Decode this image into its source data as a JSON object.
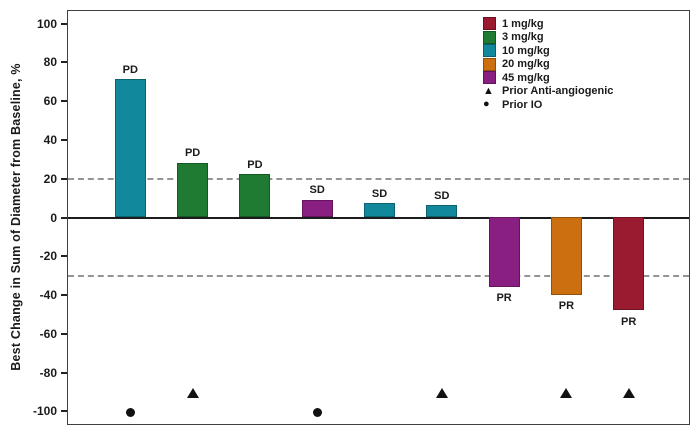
{
  "chart_data": {
    "type": "bar",
    "title": "",
    "xlabel": "",
    "ylabel": "Best Change in Sum of Diameter from Baseline, %",
    "ylim": [
      -107,
      107
    ],
    "yticks": [
      100,
      80,
      60,
      40,
      20,
      0,
      -20,
      -40,
      -60,
      -80,
      -100
    ],
    "reference_lines": [
      20,
      -30
    ],
    "grid": false,
    "legend_position": "top-right",
    "bars": [
      {
        "value": 71,
        "response": "PD",
        "dose": "10 mg/kg",
        "prior_io": true,
        "prior_antiangiogenic": false
      },
      {
        "value": 28,
        "response": "PD",
        "dose": "3 mg/kg",
        "prior_io": false,
        "prior_antiangiogenic": true
      },
      {
        "value": 22,
        "response": "PD",
        "dose": "3 mg/kg",
        "prior_io": false,
        "prior_antiangiogenic": false
      },
      {
        "value": 9,
        "response": "SD",
        "dose": "45 mg/kg",
        "prior_io": true,
        "prior_antiangiogenic": false
      },
      {
        "value": 7,
        "response": "SD",
        "dose": "10 mg/kg",
        "prior_io": false,
        "prior_antiangiogenic": false
      },
      {
        "value": 6,
        "response": "SD",
        "dose": "10 mg/kg",
        "prior_io": false,
        "prior_antiangiogenic": true
      },
      {
        "value": -36,
        "response": "PR",
        "dose": "45 mg/kg",
        "prior_io": false,
        "prior_antiangiogenic": false
      },
      {
        "value": -40,
        "response": "PR",
        "dose": "20 mg/kg",
        "prior_io": false,
        "prior_antiangiogenic": true
      },
      {
        "value": -48,
        "response": "PR",
        "dose": "1 mg/kg",
        "prior_io": false,
        "prior_antiangiogenic": true
      }
    ],
    "dose_colors": {
      "1 mg/kg": "#9A1B2F",
      "3 mg/kg": "#1F7B31",
      "10 mg/kg": "#11889B",
      "20 mg/kg": "#CC6F11",
      "45 mg/kg": "#8A1F82"
    },
    "marker_values": {
      "prior_antiangiogenic": -90,
      "prior_io": -100
    },
    "legend": [
      {
        "icon": "swatch",
        "color": "#9A1B2F",
        "label": "1 mg/kg"
      },
      {
        "icon": "swatch",
        "color": "#1F7B31",
        "label": "3 mg/kg"
      },
      {
        "icon": "swatch",
        "color": "#11889B",
        "label": "10 mg/kg"
      },
      {
        "icon": "swatch",
        "color": "#CC6F11",
        "label": "20 mg/kg"
      },
      {
        "icon": "swatch",
        "color": "#8A1F82",
        "label": "45 mg/kg"
      },
      {
        "icon": "triangle",
        "color": "#111111",
        "label": "Prior Anti-angiogenic"
      },
      {
        "icon": "circle",
        "color": "#111111",
        "label": "Prior IO"
      }
    ],
    "colors": {
      "reference_line": "#949494",
      "zero_line": "#1c1c1c",
      "frame": "#3f3f3f",
      "marker": "#111111"
    }
  }
}
